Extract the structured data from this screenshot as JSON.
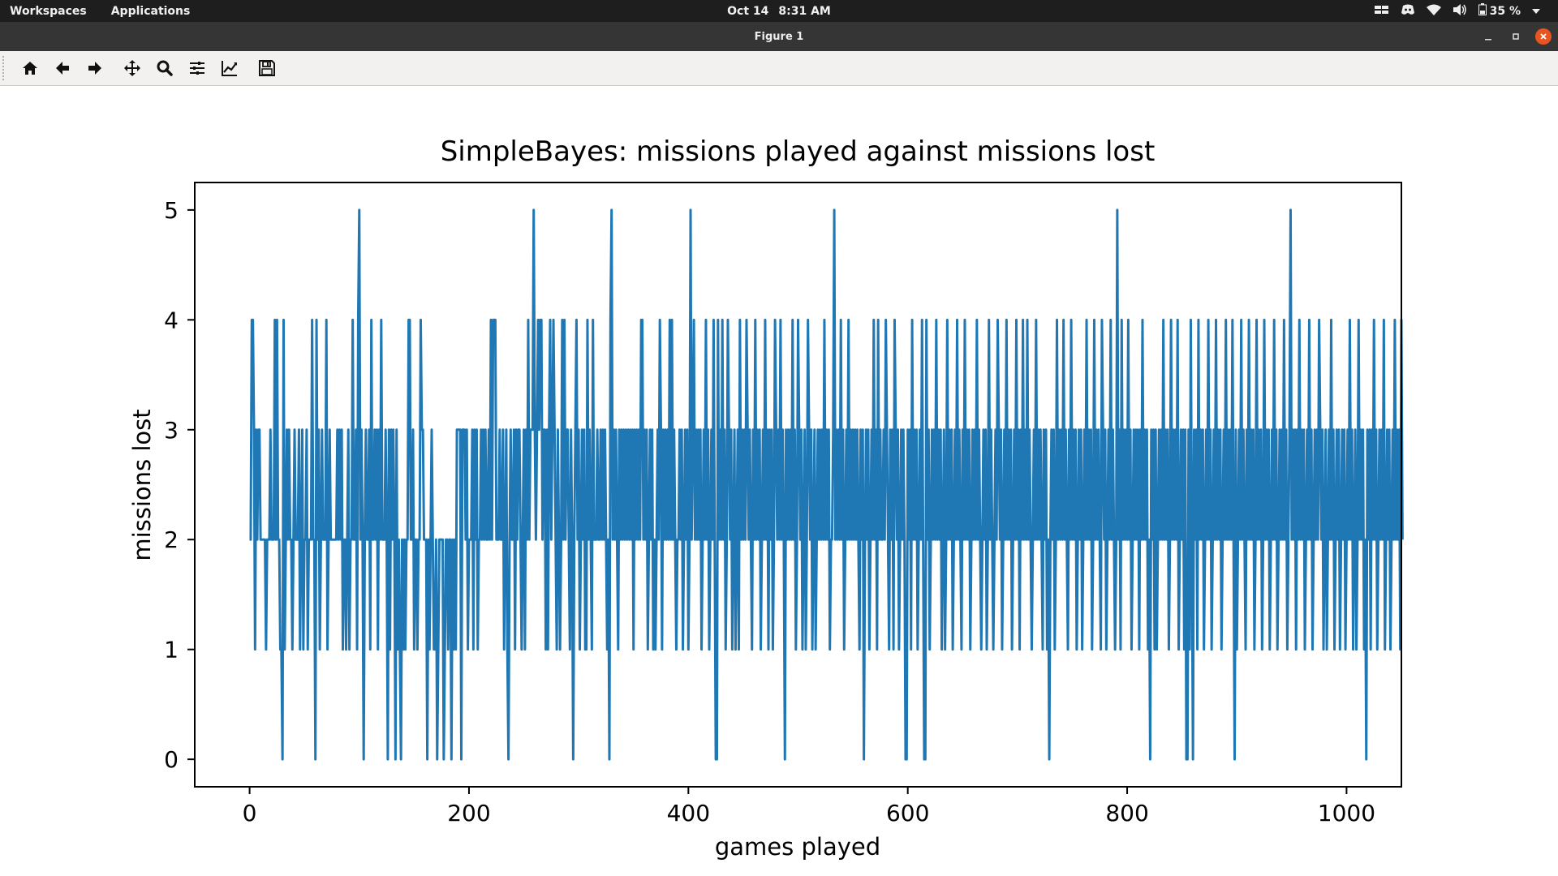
{
  "topbar": {
    "workspaces": "Workspaces",
    "applications": "Applications",
    "date": "Oct 14",
    "time": "8:31 AM",
    "battery": "35 %"
  },
  "window": {
    "title": "Figure 1"
  },
  "toolbar": {
    "icons": [
      "home-icon",
      "back-arrow-icon",
      "forward-arrow-icon",
      "pan-icon",
      "zoom-icon",
      "configure-subplots-icon",
      "edit-axes-icon",
      "save-icon"
    ]
  },
  "colors": {
    "series": "#1f77b4",
    "close_button": "#e95420"
  },
  "chart_data": {
    "type": "line",
    "title": "SimpleBayes: missions played against missions lost",
    "xlabel": "games played",
    "ylabel": "missions lost",
    "xlim": [
      -50,
      1050
    ],
    "ylim": [
      -0.25,
      5.25
    ],
    "xticks": [
      "0",
      "200",
      "400",
      "600",
      "800",
      "1000"
    ],
    "yticks": [
      "0",
      "1",
      "2",
      "3",
      "4",
      "5"
    ],
    "series": [
      {
        "x_start": 0,
        "x_step": 1,
        "values": [
          2,
          2,
          4,
          4,
          3,
          1,
          3,
          2,
          3,
          3,
          2,
          2,
          2,
          2,
          2,
          1,
          2,
          2,
          2,
          3,
          2,
          2,
          2,
          4,
          2,
          4,
          2,
          2,
          1,
          1,
          0,
          4,
          1,
          2,
          3,
          2,
          3,
          2,
          2,
          1,
          2,
          3,
          2,
          2,
          2,
          3,
          1,
          2,
          3,
          1,
          2,
          2,
          3,
          1,
          2,
          2,
          2,
          4,
          2,
          2,
          0,
          4,
          2,
          3,
          1,
          2,
          3,
          2,
          2,
          2,
          4,
          1,
          2,
          3,
          2,
          2,
          2,
          2,
          2,
          2,
          3,
          2,
          3,
          2,
          3,
          1,
          2,
          2,
          1,
          2,
          3,
          1,
          2,
          2,
          4,
          2,
          2,
          3,
          1,
          4,
          5,
          2,
          3,
          2,
          0,
          2,
          3,
          2,
          2,
          3,
          1,
          4,
          2,
          2,
          3,
          2,
          3,
          1,
          3,
          2,
          4,
          2,
          2,
          2,
          3,
          2,
          0,
          3,
          1,
          3,
          2,
          3,
          2,
          0,
          3,
          1,
          2,
          1,
          0,
          2,
          1,
          2,
          1,
          2,
          2,
          4,
          4,
          2,
          2,
          3,
          1,
          2,
          2,
          1,
          2,
          2,
          4,
          3,
          3,
          2,
          2,
          2,
          0,
          2,
          1,
          2,
          3,
          2,
          1,
          1,
          2,
          0,
          1,
          2,
          2,
          2,
          2,
          0,
          1,
          2,
          2,
          1,
          2,
          2,
          0,
          2,
          1,
          2,
          1,
          3,
          3,
          3,
          3,
          0,
          3,
          3,
          3,
          2,
          3,
          1,
          2,
          2,
          2,
          3,
          1,
          3,
          2,
          3,
          1,
          2,
          2,
          3,
          2,
          3,
          2,
          3,
          2,
          2,
          3,
          2,
          4,
          2,
          4,
          4,
          4,
          2,
          2,
          2,
          3,
          2,
          2,
          3,
          1,
          2,
          3,
          1,
          0,
          2,
          3,
          2,
          2,
          3,
          1,
          3,
          2,
          3,
          3,
          2,
          1,
          2,
          3,
          1,
          3,
          2,
          4,
          2,
          3,
          3,
          3,
          5,
          3,
          2,
          3,
          4,
          3,
          4,
          4,
          2,
          3,
          3,
          1,
          3,
          1,
          3,
          4,
          2,
          3,
          4,
          3,
          2,
          1,
          3,
          2,
          1,
          2,
          4,
          2,
          4,
          2,
          3,
          3,
          2,
          1,
          3,
          2,
          0,
          2,
          3,
          4,
          2,
          3,
          1,
          2,
          3,
          2,
          3,
          1,
          1,
          4,
          2,
          3,
          2,
          1,
          4,
          2,
          2,
          2,
          3,
          2,
          2,
          3,
          2,
          3,
          2,
          3,
          2,
          1,
          2,
          0,
          4,
          5,
          2,
          3,
          2,
          3,
          2,
          1,
          3,
          2,
          3,
          2,
          3,
          2,
          3,
          2,
          3,
          2,
          3,
          2,
          3,
          1,
          3,
          2,
          3,
          2,
          3,
          2,
          4,
          4,
          2,
          3,
          2,
          3,
          1,
          2,
          3,
          2,
          3,
          1,
          2,
          1,
          2,
          3,
          2,
          4,
          3,
          1,
          3,
          2,
          3,
          2,
          3,
          2,
          4,
          2,
          4,
          2,
          3,
          2,
          1,
          2,
          2,
          3,
          2,
          3,
          1,
          2,
          3,
          2,
          3,
          1,
          2,
          5,
          2,
          3,
          4,
          2,
          3,
          2,
          3,
          2,
          3,
          1,
          2,
          3,
          2,
          4,
          2,
          3,
          1,
          2,
          3,
          2,
          4,
          2,
          0,
          0,
          4,
          2,
          3,
          2,
          4,
          2,
          3,
          1,
          2,
          4,
          3,
          2,
          3,
          1,
          2,
          3,
          1,
          2,
          3,
          1,
          4,
          2,
          3,
          2,
          3,
          2,
          4,
          3,
          2,
          3,
          2,
          1,
          3,
          2,
          4,
          2,
          3,
          2,
          3,
          1,
          2,
          3,
          2,
          4,
          2,
          3,
          1,
          3,
          2,
          3,
          1,
          2,
          4,
          3,
          2,
          3,
          2,
          4,
          2,
          3,
          2,
          0,
          3,
          2,
          3,
          2,
          3,
          2,
          4,
          2,
          3,
          1,
          2,
          4,
          3,
          2,
          3,
          1,
          2,
          3,
          1,
          2,
          4,
          3,
          2,
          3,
          1,
          2,
          3,
          1,
          2,
          3,
          2,
          3,
          2,
          3,
          2,
          4,
          2,
          3,
          2,
          3,
          1,
          2,
          2,
          3,
          5,
          2,
          3,
          2,
          3,
          2,
          4,
          2,
          3,
          1,
          2,
          3,
          2,
          4,
          2,
          3,
          2,
          3,
          2,
          3,
          2,
          3,
          2,
          1,
          3,
          2,
          3,
          0,
          2,
          3,
          2,
          3,
          1,
          2,
          3,
          2,
          4,
          2,
          3,
          1,
          4,
          2,
          3,
          2,
          2,
          3,
          2,
          4,
          3,
          2,
          1,
          3,
          2,
          3,
          1,
          4,
          3,
          2,
          3,
          1,
          2,
          3,
          2,
          3,
          2,
          0,
          0,
          3,
          2,
          3,
          1,
          4,
          2,
          3,
          2,
          3,
          1,
          2,
          3,
          2,
          4,
          2,
          0,
          0,
          4,
          2,
          3,
          1,
          2,
          3,
          2,
          3,
          2,
          4,
          2,
          3,
          2,
          3,
          1,
          2,
          3,
          1,
          2,
          4,
          2,
          3,
          2,
          3,
          1,
          2,
          3,
          2,
          4,
          2,
          3,
          2,
          1,
          3,
          2,
          4,
          2,
          3,
          2,
          3,
          1,
          2,
          3,
          2,
          3,
          2,
          4,
          2,
          3,
          2,
          1,
          2,
          3,
          2,
          3,
          1,
          2,
          4,
          2,
          3,
          2,
          1,
          2,
          3,
          2,
          4,
          3,
          2,
          3,
          1,
          2,
          3,
          2,
          4,
          2,
          3,
          2,
          3,
          1,
          2,
          3,
          2,
          4,
          2,
          3,
          1,
          3,
          2,
          4,
          2,
          3,
          2,
          4,
          2,
          3,
          2,
          1,
          2,
          3,
          2,
          4,
          2,
          3,
          2,
          3,
          2,
          1,
          3,
          2,
          3,
          1,
          2,
          0,
          2,
          3,
          2,
          3,
          1,
          2,
          4,
          2,
          3,
          2,
          3,
          2,
          4,
          2,
          3,
          2,
          1,
          3,
          2,
          4,
          2,
          3,
          2,
          3,
          1,
          2,
          3,
          2,
          3,
          1,
          2,
          3,
          2,
          4,
          2,
          3,
          2,
          3,
          1,
          2,
          4,
          2,
          3,
          2,
          3,
          2,
          1,
          4,
          3,
          2,
          3,
          1,
          2,
          3,
          2,
          4,
          2,
          3,
          2,
          1,
          2,
          5,
          2,
          3,
          1,
          4,
          2,
          3,
          2,
          3,
          2,
          4,
          2,
          3,
          1,
          2,
          3,
          2,
          3,
          2,
          3,
          1,
          3,
          2,
          4,
          2,
          3,
          2,
          3,
          1,
          2,
          0,
          3,
          2,
          3,
          1,
          3,
          1,
          2,
          3,
          2,
          3,
          2,
          4,
          2,
          3,
          2,
          3,
          1,
          2,
          4,
          2,
          3,
          2,
          3,
          2,
          4,
          1,
          2,
          3,
          2,
          3,
          1,
          3,
          0,
          0,
          3,
          1,
          4,
          2,
          0,
          3,
          2,
          3,
          1,
          4,
          2,
          3,
          2,
          3,
          1,
          2,
          3,
          2,
          4,
          2,
          3,
          1,
          2,
          3,
          2,
          4,
          2,
          3,
          2,
          3,
          1,
          2,
          3,
          2,
          4,
          2,
          3,
          2,
          3,
          2,
          4,
          2,
          0,
          3,
          1,
          2,
          3,
          2,
          4,
          2,
          3,
          2,
          1,
          3,
          2,
          4,
          2,
          3,
          2,
          3,
          1,
          2,
          4,
          2,
          3,
          2,
          3,
          1,
          2,
          4,
          2,
          3,
          2,
          3,
          1,
          2,
          3,
          2,
          4,
          2,
          3,
          1,
          2,
          3,
          2,
          3,
          2,
          4,
          2,
          3,
          1,
          2,
          3,
          5,
          2,
          3,
          2,
          3,
          1,
          3,
          2,
          4,
          2,
          3,
          2,
          3,
          1,
          2,
          3,
          2,
          4,
          2,
          3,
          1,
          2,
          3,
          2,
          3,
          2,
          4,
          3,
          2,
          3,
          1,
          2,
          3,
          1,
          2,
          3,
          2,
          4,
          2,
          3,
          1,
          2,
          3,
          2,
          3,
          1,
          2,
          3,
          2,
          3,
          1,
          2,
          3,
          2,
          4,
          2,
          3,
          1,
          2,
          3,
          1,
          2,
          4,
          2,
          3,
          2,
          3,
          1,
          2,
          0,
          3,
          2,
          3,
          1,
          3,
          2,
          4,
          2,
          3,
          1,
          2,
          3,
          2,
          3,
          2,
          4,
          1,
          2,
          3,
          2,
          3,
          1,
          2,
          3,
          2,
          4,
          2,
          3,
          2,
          3,
          1,
          4,
          2
        ]
      }
    ]
  }
}
